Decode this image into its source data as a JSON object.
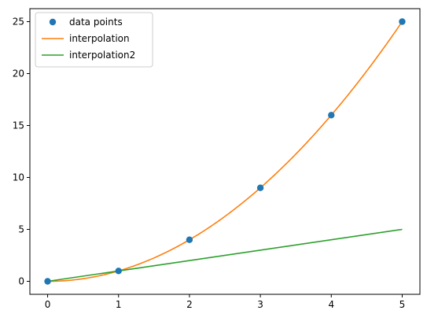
{
  "chart_data": {
    "type": "line",
    "xlim": [
      -0.25,
      5.25
    ],
    "ylim": [
      -1.25,
      26.25
    ],
    "xticks": [
      0,
      1,
      2,
      3,
      4,
      5
    ],
    "yticks": [
      0,
      5,
      10,
      15,
      20,
      25
    ],
    "grid": false,
    "legend_position": "top-left",
    "series": [
      {
        "name": "data points",
        "kind": "scatter",
        "color": "#1f77b4",
        "x": [
          0,
          1,
          2,
          3,
          4,
          5
        ],
        "y": [
          0,
          1,
          4,
          9,
          16,
          25
        ]
      },
      {
        "name": "interpolation",
        "kind": "line",
        "color": "#ff7f0e",
        "function": "x^2",
        "x_range": [
          0,
          5
        ]
      },
      {
        "name": "interpolation2",
        "kind": "line",
        "color": "#2ca02c",
        "x": [
          0,
          1,
          5
        ],
        "y": [
          0,
          1,
          5
        ]
      }
    ]
  }
}
